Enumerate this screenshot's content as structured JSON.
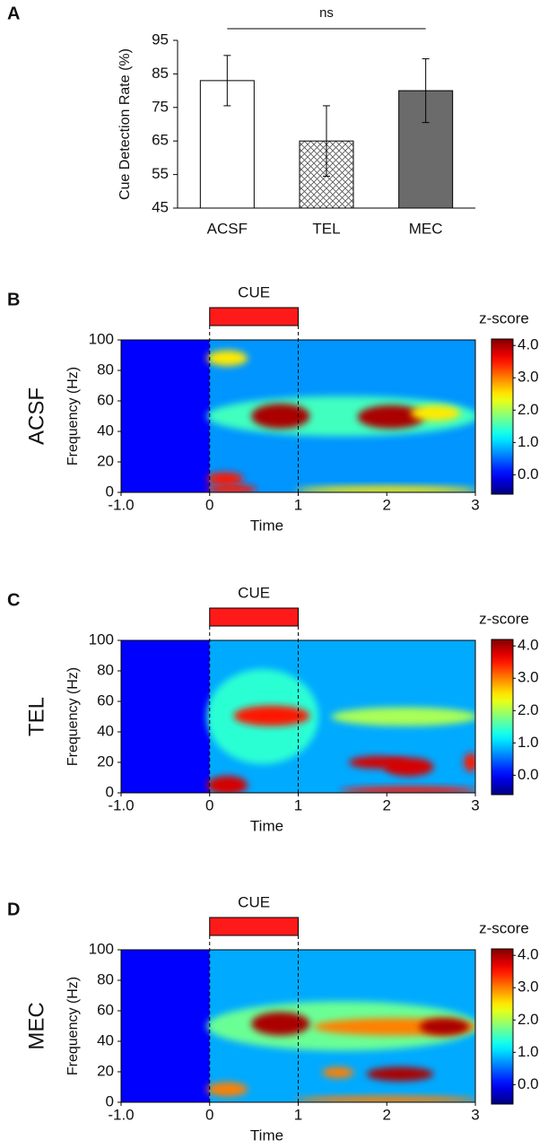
{
  "chart_data": [
    {
      "type": "bar",
      "panel": "A",
      "ylabel": "Cue Detection Rate (%)",
      "annotation": "ns",
      "categories": [
        "ACSF",
        "TEL",
        "MEC"
      ],
      "values": [
        83,
        65,
        80
      ],
      "errors": [
        7.5,
        10.5,
        9.5
      ],
      "colors": [
        "#ffffff",
        "#ffffff",
        "#6b6b6b"
      ],
      "hatch": [
        false,
        true,
        false
      ],
      "ylim": [
        45,
        95
      ],
      "yticks": [
        45,
        55,
        65,
        75,
        85,
        95
      ]
    },
    {
      "type": "heatmap",
      "panel": "B",
      "row_label": "ACSF",
      "xlabel": "Time",
      "ylabel": "Frequency (Hz)",
      "cue_label": "CUE",
      "cue": [
        0,
        1
      ],
      "colorbar_label": "z-score",
      "xlim": [
        -1,
        3
      ],
      "xticks": [
        {
          "value": -1,
          "label": "-1.0"
        },
        0,
        1,
        2,
        3
      ],
      "ylim": [
        0,
        100
      ],
      "yticks": [
        0,
        20,
        40,
        60,
        80,
        100
      ],
      "zlim": [
        -0.6,
        4.2
      ],
      "zticks": [
        {
          "value": 0,
          "label": "0.0"
        },
        {
          "value": 1,
          "label": "1.0"
        },
        {
          "value": 2,
          "label": "2.0"
        },
        {
          "value": 3,
          "label": "3.0"
        },
        {
          "value": 4,
          "label": "4.0"
        }
      ],
      "base": [
        {
          "x": [
            -1,
            0
          ],
          "z": 0
        },
        {
          "x": [
            0,
            3
          ],
          "z": 0.7
        }
      ],
      "hotspots": [
        {
          "x": [
            0,
            3
          ],
          "y": [
            38,
            62
          ],
          "z": 1.5
        },
        {
          "x": [
            0.5,
            1.1
          ],
          "y": [
            43,
            57
          ],
          "z": 4
        },
        {
          "x": [
            1.7,
            2.4
          ],
          "y": [
            43,
            56
          ],
          "z": 4
        },
        {
          "x": [
            2.3,
            2.8
          ],
          "y": [
            48,
            56
          ],
          "z": 2.5
        },
        {
          "x": [
            0,
            0.4
          ],
          "y": [
            84,
            92
          ],
          "z": 2.5
        },
        {
          "x": [
            0,
            0.35
          ],
          "y": [
            6,
            12
          ],
          "z": 3.5
        },
        {
          "x": [
            0,
            0.5
          ],
          "y": [
            0,
            4
          ],
          "z": 3.5
        },
        {
          "x": [
            1,
            3
          ],
          "y": [
            0,
            3
          ],
          "z": 2.5
        }
      ]
    },
    {
      "type": "heatmap",
      "panel": "C",
      "row_label": "TEL",
      "xlabel": "Time",
      "ylabel": "Frequency (Hz)",
      "cue_label": "CUE",
      "cue": [
        0,
        1
      ],
      "colorbar_label": "z-score",
      "xlim": [
        -1,
        3
      ],
      "xticks": [
        {
          "value": -1,
          "label": "-1.0"
        },
        0,
        1,
        2,
        3
      ],
      "ylim": [
        0,
        100
      ],
      "yticks": [
        0,
        20,
        40,
        60,
        80,
        100
      ],
      "zlim": [
        -0.6,
        4.2
      ],
      "zticks": [
        {
          "value": 0,
          "label": "0.0"
        },
        {
          "value": 1,
          "label": "1.0"
        },
        {
          "value": 2,
          "label": "2.0"
        },
        {
          "value": 3,
          "label": "3.0"
        },
        {
          "value": 4,
          "label": "4.0"
        }
      ],
      "base": [
        {
          "x": [
            -1,
            0
          ],
          "z": 0
        },
        {
          "x": [
            0,
            3
          ],
          "z": 0.8
        }
      ],
      "hotspots": [
        {
          "x": [
            0,
            1.2
          ],
          "y": [
            20,
            80
          ],
          "z": 1.4
        },
        {
          "x": [
            0.3,
            1.1
          ],
          "y": [
            45,
            56
          ],
          "z": 3.5
        },
        {
          "x": [
            1.4,
            3
          ],
          "y": [
            45,
            55
          ],
          "z": 2
        },
        {
          "x": [
            1.6,
            2.2
          ],
          "y": [
            17,
            23
          ],
          "z": 3.8
        },
        {
          "x": [
            2,
            2.5
          ],
          "y": [
            12,
            22
          ],
          "z": 3.8
        },
        {
          "x": [
            2.9,
            3
          ],
          "y": [
            15,
            25
          ],
          "z": 3.5
        },
        {
          "x": [
            0,
            0.4
          ],
          "y": [
            0,
            10
          ],
          "z": 3.8
        },
        {
          "x": [
            1.5,
            3
          ],
          "y": [
            0,
            3
          ],
          "z": 3.5
        }
      ]
    },
    {
      "type": "heatmap",
      "panel": "D",
      "row_label": "MEC",
      "xlabel": "Time",
      "ylabel": "Frequency (Hz)",
      "cue_label": "CUE",
      "cue": [
        0,
        1
      ],
      "colorbar_label": "z-score",
      "xlim": [
        -1,
        3
      ],
      "xticks": [
        {
          "value": -1,
          "label": "-1.0"
        },
        0,
        1,
        2,
        3
      ],
      "ylim": [
        0,
        100
      ],
      "yticks": [
        0,
        20,
        40,
        60,
        80,
        100
      ],
      "zlim": [
        -0.6,
        4.2
      ],
      "zticks": [
        {
          "value": 0,
          "label": "0.0"
        },
        {
          "value": 1,
          "label": "1.0"
        },
        {
          "value": 2,
          "label": "2.0"
        },
        {
          "value": 3,
          "label": "3.0"
        },
        {
          "value": 4,
          "label": "4.0"
        }
      ],
      "base": [
        {
          "x": [
            -1,
            0
          ],
          "z": 0
        },
        {
          "x": [
            0,
            3
          ],
          "z": 0.8
        }
      ],
      "hotspots": [
        {
          "x": [
            0,
            3
          ],
          "y": [
            35,
            65
          ],
          "z": 1.7
        },
        {
          "x": [
            0.5,
            1.1
          ],
          "y": [
            45,
            58
          ],
          "z": 4
        },
        {
          "x": [
            1.2,
            3
          ],
          "y": [
            45,
            54
          ],
          "z": 3
        },
        {
          "x": [
            2.4,
            2.9
          ],
          "y": [
            45,
            54
          ],
          "z": 4
        },
        {
          "x": [
            1.8,
            2.5
          ],
          "y": [
            15,
            22
          ],
          "z": 4
        },
        {
          "x": [
            1.3,
            1.6
          ],
          "y": [
            17,
            22
          ],
          "z": 3
        },
        {
          "x": [
            0,
            0.4
          ],
          "y": [
            5,
            12
          ],
          "z": 3
        },
        {
          "x": [
            1,
            3
          ],
          "y": [
            0,
            3
          ],
          "z": 3
        }
      ]
    }
  ]
}
